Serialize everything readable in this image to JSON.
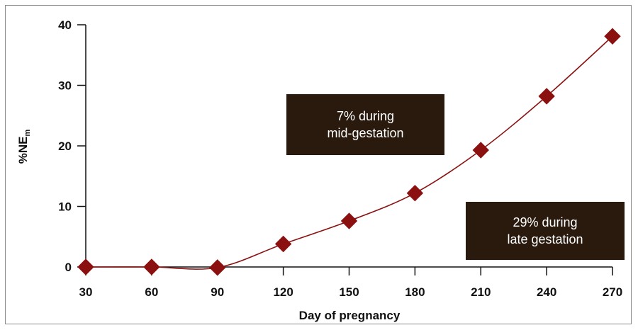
{
  "chart_data": {
    "type": "line",
    "x": [
      30,
      60,
      90,
      120,
      150,
      180,
      210,
      240,
      270
    ],
    "series": [
      {
        "values": [
          0,
          0,
          -0.1,
          3.8,
          7.6,
          12.2,
          19.3,
          28.2,
          38.1
        ]
      }
    ],
    "xlabel": "Day of pregnancy",
    "ylabel": {
      "main": "%NE",
      "sub": "m"
    },
    "xticks": [
      "30",
      "60",
      "90",
      "120",
      "150",
      "180",
      "210",
      "240",
      "270"
    ],
    "yticks": [
      "0",
      "10",
      "20",
      "30",
      "40"
    ],
    "xlim": [
      30,
      270
    ],
    "ylim": [
      0,
      40
    ],
    "grid": false,
    "colors": {
      "series": "#8b1111",
      "marker": "#8b1111",
      "box": "#2a1a0e"
    },
    "annotations": [
      {
        "lines": [
          "7% during",
          "mid-gestation"
        ]
      },
      {
        "lines": [
          "29% during",
          "late gestation"
        ]
      }
    ]
  }
}
